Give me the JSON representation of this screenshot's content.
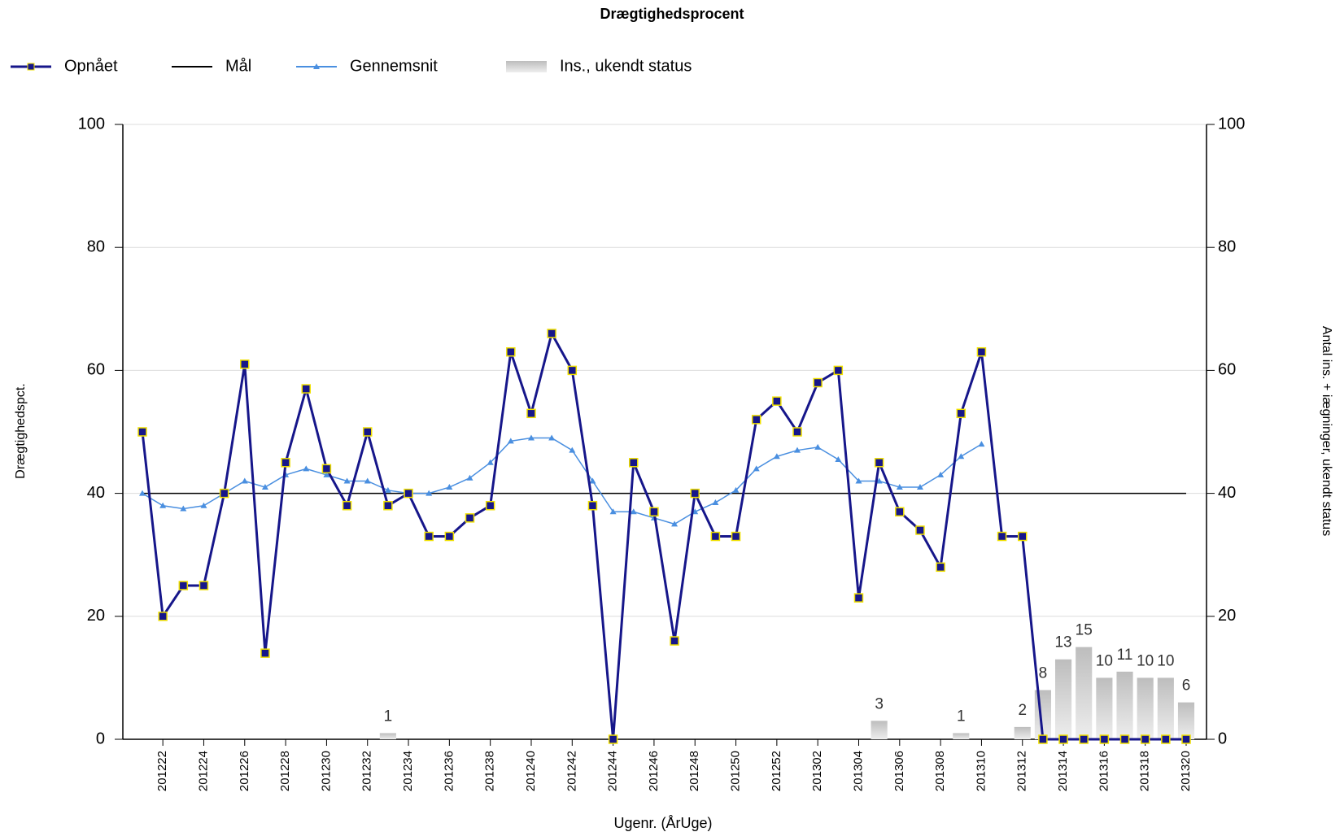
{
  "chart_data": {
    "type": "line",
    "title": "Drægtighedsprocent",
    "x_label": "Ugenr. (ÅrUge)",
    "y_label": "Drægtighedspct.",
    "y2_label": "Antal ins. + iægninger, ukendt status",
    "categories": [
      null,
      "201222",
      null,
      "201224",
      null,
      "201226",
      null,
      "201228",
      null,
      "201230",
      null,
      "201232",
      null,
      "201234",
      null,
      "201236",
      null,
      "201238",
      null,
      "201240",
      null,
      "201242",
      null,
      "201244",
      null,
      "201246",
      null,
      "201248",
      null,
      "201250",
      null,
      "201252",
      null,
      "201302",
      null,
      "201304",
      null,
      "201306",
      null,
      "201308",
      null,
      "201310",
      null,
      "201312",
      null,
      "201314",
      null,
      "201316",
      null,
      "201318",
      null,
      "201320"
    ],
    "series": [
      {
        "name": "Opnået",
        "color": "#16168a",
        "marker": "square",
        "values": [
          50,
          20,
          25,
          25,
          40,
          61,
          14,
          45,
          57,
          44,
          38,
          50,
          38,
          40,
          33,
          33,
          36,
          38,
          63,
          53,
          66,
          60,
          38,
          0,
          45,
          37,
          16,
          40,
          33,
          33,
          52,
          55,
          50,
          58,
          60,
          23,
          45,
          37,
          34,
          28,
          53,
          63,
          33,
          33,
          0,
          0,
          0,
          0,
          0,
          0,
          0,
          0
        ]
      },
      {
        "name": "Mål",
        "color": "#000000",
        "marker": "none",
        "values": [
          40,
          40,
          40,
          40,
          40,
          40,
          40,
          40,
          40,
          40,
          40,
          40,
          40,
          40,
          40,
          40,
          40,
          40,
          40,
          40,
          40,
          40,
          40,
          40,
          40,
          40,
          40,
          40,
          40,
          40,
          40,
          40,
          40,
          40,
          40,
          40,
          40,
          40,
          40,
          40,
          40,
          40,
          40,
          40,
          40,
          40,
          40,
          40,
          40,
          40,
          40,
          40
        ]
      },
      {
        "name": "Gennemsnit",
        "color": "#4a8fe0",
        "marker": "triangle",
        "values": [
          40,
          38,
          37.5,
          38,
          40,
          42,
          41,
          43,
          44,
          43,
          42,
          42,
          40.5,
          40,
          40,
          41,
          42.5,
          45,
          48.5,
          49,
          49,
          47,
          42,
          37,
          37,
          36,
          35,
          37,
          38.5,
          40.5,
          44,
          46,
          47,
          47.5,
          45.5,
          42,
          42,
          41,
          41,
          43,
          46,
          48,
          null,
          null,
          null,
          null,
          null,
          null,
          null,
          null,
          null,
          null
        ]
      },
      {
        "name": "Ins., ukendt status",
        "color": "#cccccc",
        "type": "bar",
        "axis": "y2",
        "values": [
          null,
          null,
          null,
          null,
          null,
          null,
          null,
          null,
          null,
          null,
          null,
          null,
          1,
          null,
          null,
          null,
          null,
          null,
          null,
          null,
          null,
          null,
          null,
          null,
          null,
          null,
          null,
          null,
          null,
          null,
          null,
          null,
          null,
          null,
          null,
          null,
          3,
          null,
          null,
          null,
          1,
          null,
          null,
          2,
          8,
          13,
          15,
          10,
          11,
          10,
          10,
          6
        ]
      }
    ],
    "ylim": [
      0,
      100
    ],
    "yticks": [
      0,
      20,
      40,
      60,
      80,
      100
    ],
    "y2lim": [
      0,
      100
    ],
    "y2ticks": [
      0,
      20,
      40,
      60,
      80,
      100
    ],
    "grid": true
  }
}
